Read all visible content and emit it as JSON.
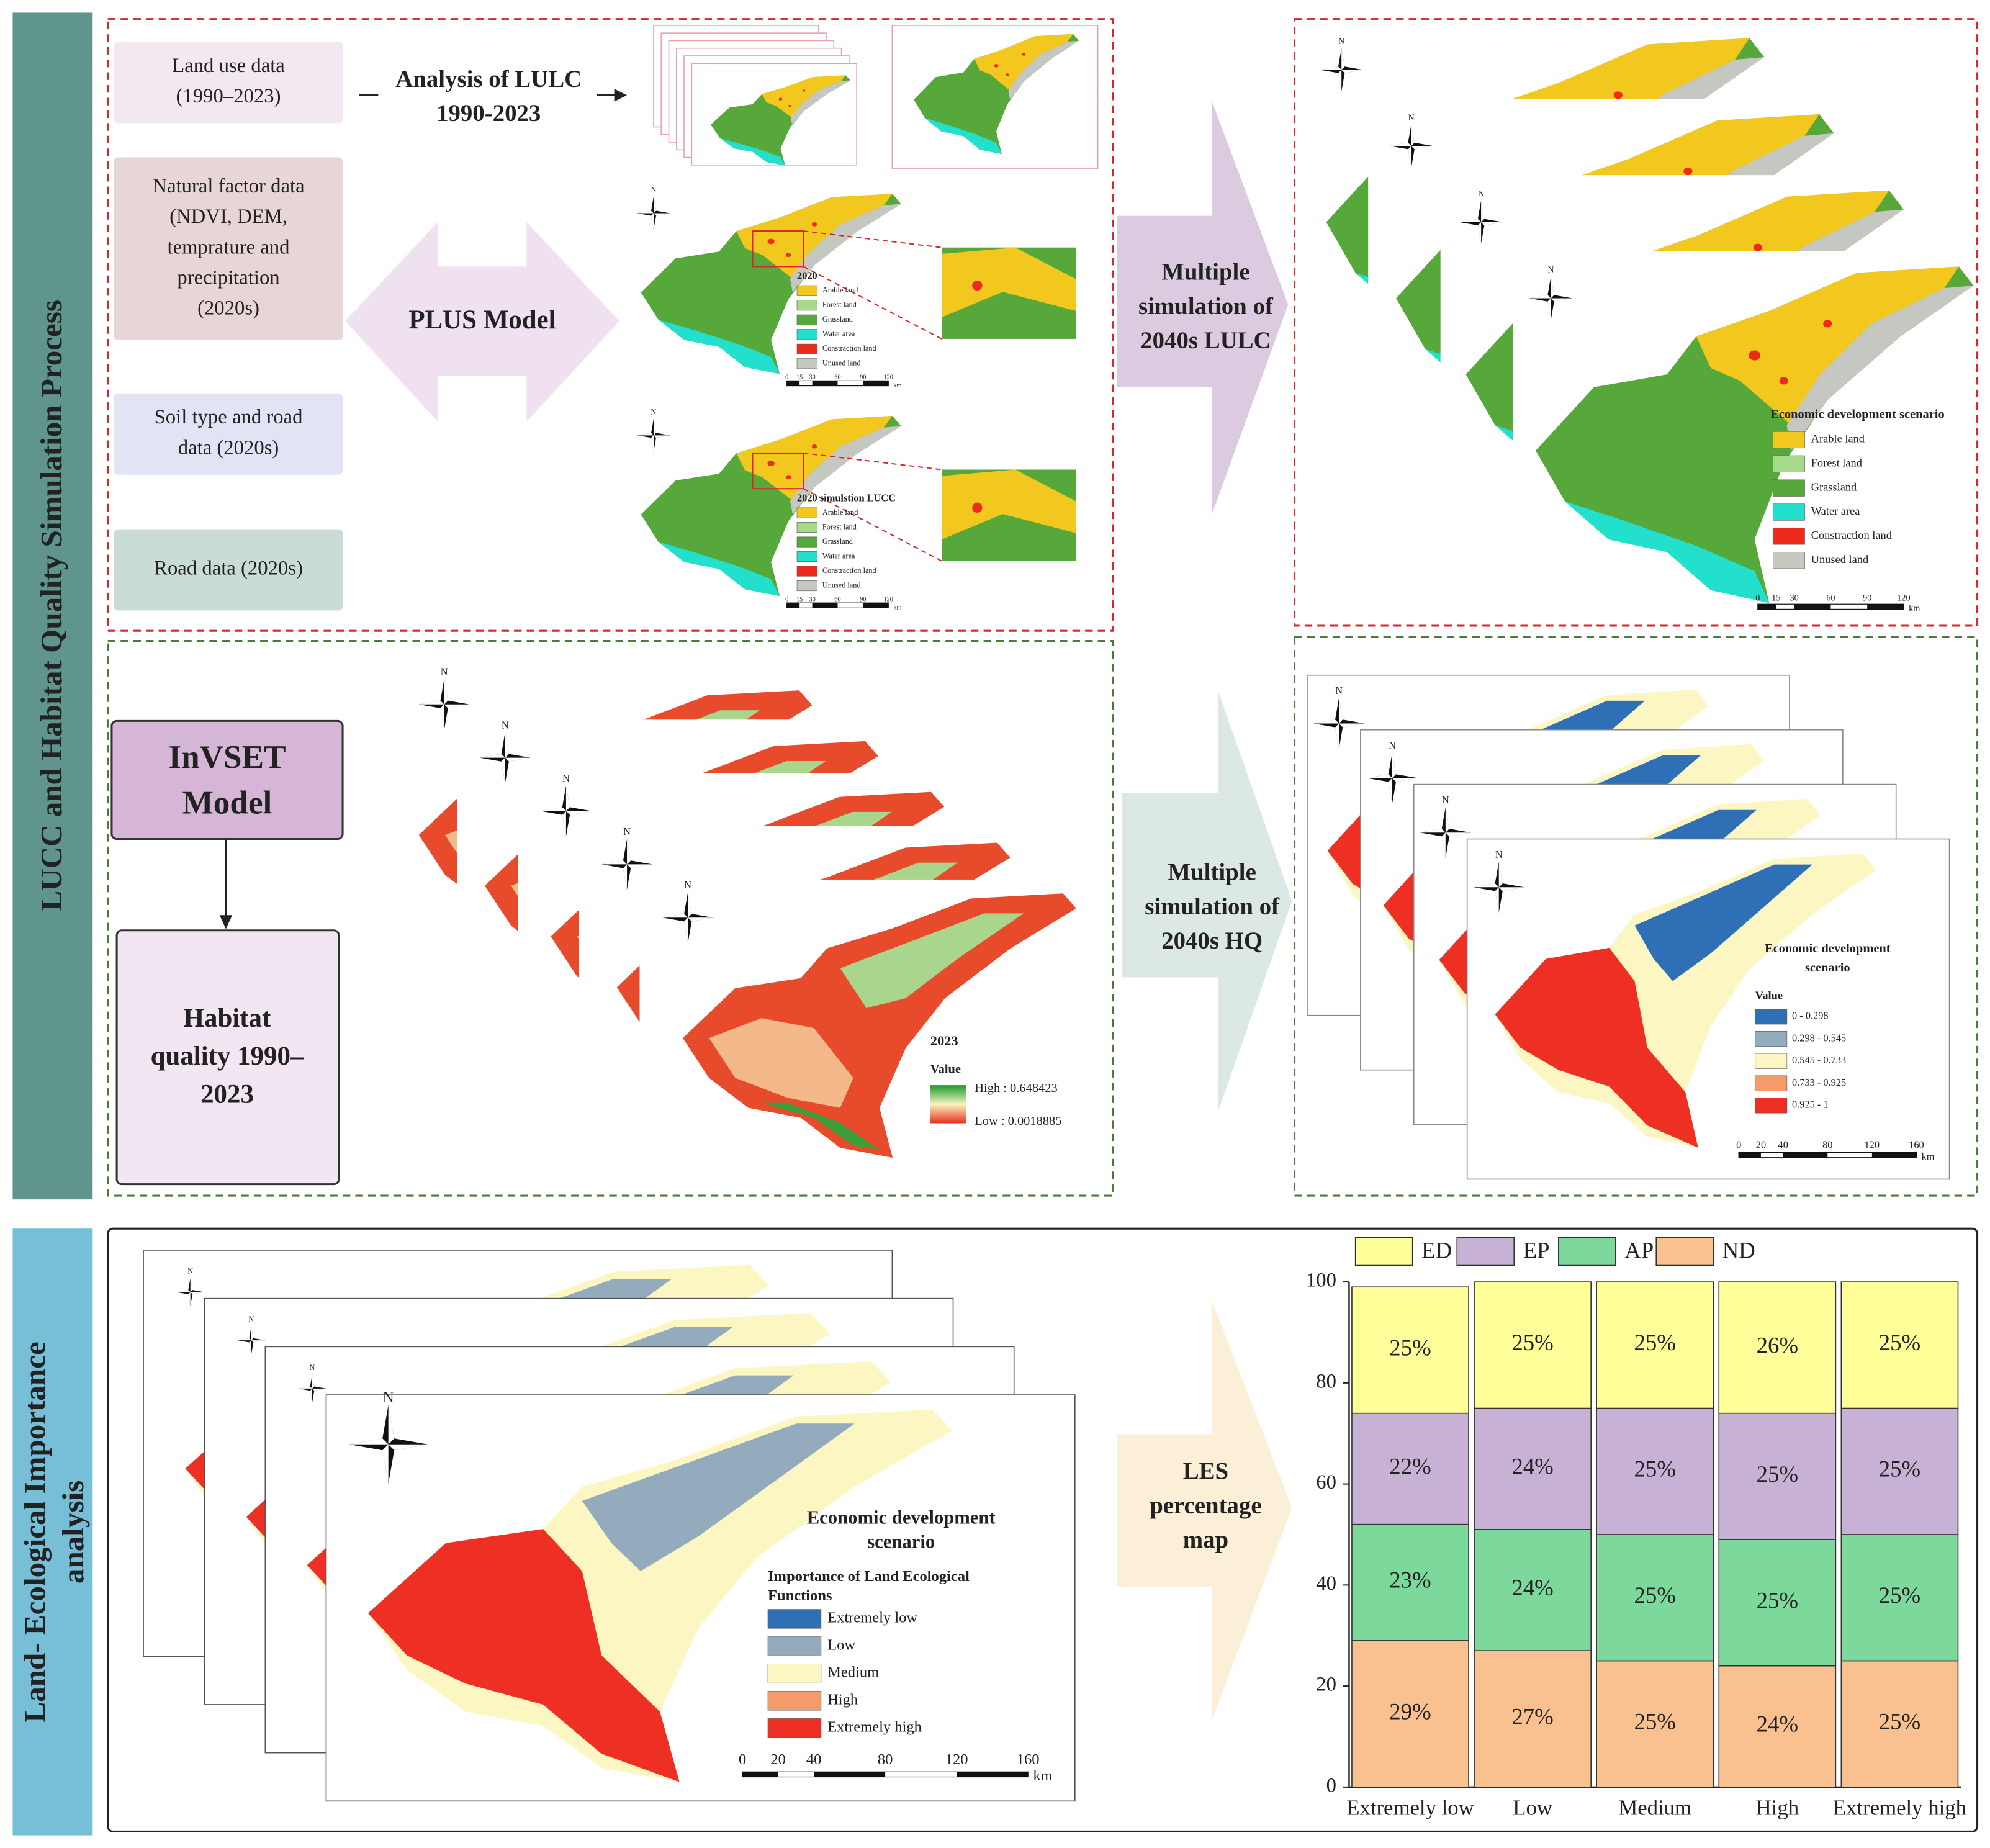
{
  "side_labels": {
    "top": "LUCC and Habitat Quality Simulation Process",
    "bottom": [
      "Land- Ecological Importance",
      "analysis"
    ]
  },
  "inputs": [
    [
      "Land use data",
      "(1990–2023)"
    ],
    [
      "Natural factor data",
      "(NDVI, DEM,",
      "temprature and",
      "precipitation",
      "(2020s)"
    ],
    [
      "Soil type and road",
      "data (2020s)"
    ],
    [
      "Road data (2020s)"
    ]
  ],
  "steps": {
    "analysis": [
      "Analysis of LULC",
      "1990-2023"
    ],
    "plus": "PLUS Model",
    "lulc_sim": [
      "Multiple",
      "simulation of",
      "2040s LULC"
    ],
    "hq_sim": [
      "Multiple",
      "simulation of",
      "2040s HQ"
    ],
    "les": [
      "LES",
      "percentage",
      "map"
    ],
    "invest": [
      "InVSET",
      "Model"
    ],
    "habitat": [
      "Habitat",
      "quality 1990–",
      "2023"
    ]
  },
  "north": "N",
  "lulc": {
    "map_title": "2020",
    "sim_title": "2020 simulstion LUCC",
    "scenario": "Economic development scenario",
    "classes": [
      "Arable land",
      "Forest land",
      "Grassland",
      "Water area",
      "Constraction land",
      "Unused land"
    ],
    "colors": [
      "#f2c81e",
      "#a6d98a",
      "#56a83a",
      "#22e0cc",
      "#ee2a1c",
      "#c4c8c0"
    ],
    "scale": [
      0,
      15,
      30,
      60,
      90,
      120
    ],
    "unit": "km"
  },
  "hq_2023": {
    "title": "2023",
    "value_title": "Value",
    "high": "High : 0.648423",
    "low": "Low : 0.0018885"
  },
  "hq_scenario": {
    "title": [
      "Economic development",
      "scenario"
    ],
    "value_title": "Value",
    "classes": [
      "0 - 0.298",
      "0.298 - 0.545",
      "0.545 - 0.733",
      "0.733 - 0.925",
      "0.925 - 1"
    ],
    "colors": [
      "#2e6fb5",
      "#93abbd",
      "#fbf6c2",
      "#f59a6a",
      "#ee3024"
    ],
    "scale": [
      0,
      20,
      40,
      80,
      120,
      160
    ],
    "unit": "km"
  },
  "les_map": {
    "title": [
      "Economic development",
      "scenario"
    ],
    "subtitle": [
      "Importance of Land Ecological",
      "Functions"
    ],
    "classes": [
      "Extremely low",
      "Low",
      "Medium",
      "High",
      "Extremely high"
    ],
    "colors": [
      "#2e6fb5",
      "#93abbd",
      "#fbf6c2",
      "#f59a6a",
      "#ee3024"
    ],
    "scale": [
      0,
      20,
      40,
      80,
      120,
      160
    ],
    "unit": "km"
  },
  "chart_data": {
    "type": "bar",
    "stacked": true,
    "categories": [
      "Extremely low",
      "Low",
      "Medium",
      "High",
      "Extremely high"
    ],
    "series": [
      {
        "name": "ED",
        "color": "#ffff99",
        "values": [
          25,
          25,
          25,
          26,
          25
        ],
        "value_labels": [
          "25%",
          "25%",
          "25%",
          "26%",
          "25%"
        ]
      },
      {
        "name": "EP",
        "color": "#c7b2d6",
        "values": [
          22,
          24,
          25,
          25,
          25
        ],
        "value_labels": [
          "22%",
          "24%",
          "25%",
          "25%",
          "25%"
        ]
      },
      {
        "name": "AP",
        "color": "#7dd99b",
        "values": [
          23,
          24,
          25,
          25,
          25
        ],
        "value_labels": [
          "23%",
          "24%",
          "25%",
          "25%",
          "25%"
        ]
      },
      {
        "name": "ND",
        "color": "#f9c18f",
        "values": [
          29,
          27,
          25,
          24,
          25
        ],
        "value_labels": [
          "29%",
          "27%",
          "25%",
          "24%",
          "25%"
        ]
      }
    ],
    "ylim": [
      0,
      100
    ],
    "yticks": [
      0,
      20,
      40,
      60,
      80,
      100
    ]
  }
}
